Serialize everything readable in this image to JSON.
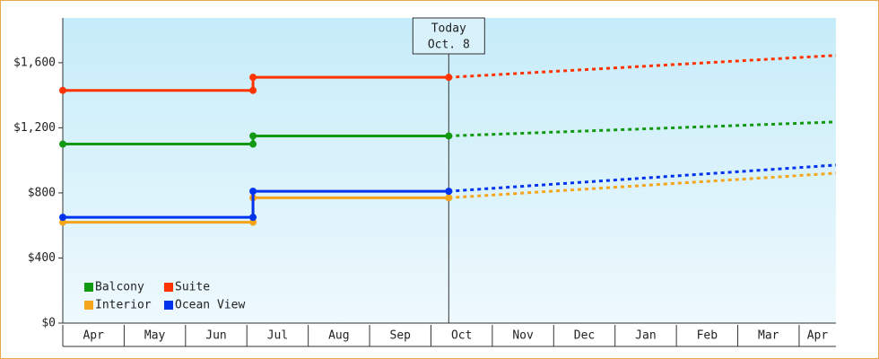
{
  "chart_data": {
    "type": "line",
    "xlim": [
      0,
      12.6
    ],
    "xticks": [
      {
        "value": 0,
        "label": "Apr"
      },
      {
        "value": 1,
        "label": "May"
      },
      {
        "value": 2,
        "label": "Jun"
      },
      {
        "value": 3,
        "label": "Jul"
      },
      {
        "value": 4,
        "label": "Aug"
      },
      {
        "value": 5,
        "label": "Sep"
      },
      {
        "value": 6,
        "label": "Oct"
      },
      {
        "value": 7,
        "label": "Nov"
      },
      {
        "value": 8,
        "label": "Dec"
      },
      {
        "value": 9,
        "label": "Jan"
      },
      {
        "value": 10,
        "label": "Feb"
      },
      {
        "value": 11,
        "label": "Mar"
      },
      {
        "value": 12,
        "label": "Apr"
      }
    ],
    "ylim": [
      0,
      1875
    ],
    "yticks": [
      {
        "value": 0,
        "label": "$0"
      },
      {
        "value": 400,
        "label": "$400"
      },
      {
        "value": 800,
        "label": "$800"
      },
      {
        "value": 1200,
        "label": "$1,200"
      },
      {
        "value": 1600,
        "label": "$1,600"
      }
    ],
    "annotation": {
      "text": [
        "Today",
        "Oct. 8"
      ],
      "x": 6.29
    },
    "legend": "lower left",
    "series": [
      {
        "name": "Balcony",
        "color": "#119911",
        "x": [
          0,
          3.1,
          3.1,
          6.29,
          12.6
        ],
        "values": [
          1100,
          1100,
          1150,
          1150,
          1236
        ]
      },
      {
        "name": "Suite",
        "color": "#ff3300",
        "x": [
          0,
          3.1,
          3.1,
          6.29,
          12.6
        ],
        "values": [
          1430,
          1430,
          1510,
          1510,
          1645
        ]
      },
      {
        "name": "Interior",
        "color": "#f5a51c",
        "x": [
          0,
          3.1,
          3.1,
          6.29,
          12.6
        ],
        "values": [
          620,
          620,
          770,
          770,
          921
        ]
      },
      {
        "name": "Ocean View",
        "color": "#0033ee",
        "x": [
          0,
          3.1,
          3.1,
          6.29,
          12.6
        ],
        "values": [
          650,
          650,
          810,
          810,
          971
        ]
      }
    ]
  }
}
